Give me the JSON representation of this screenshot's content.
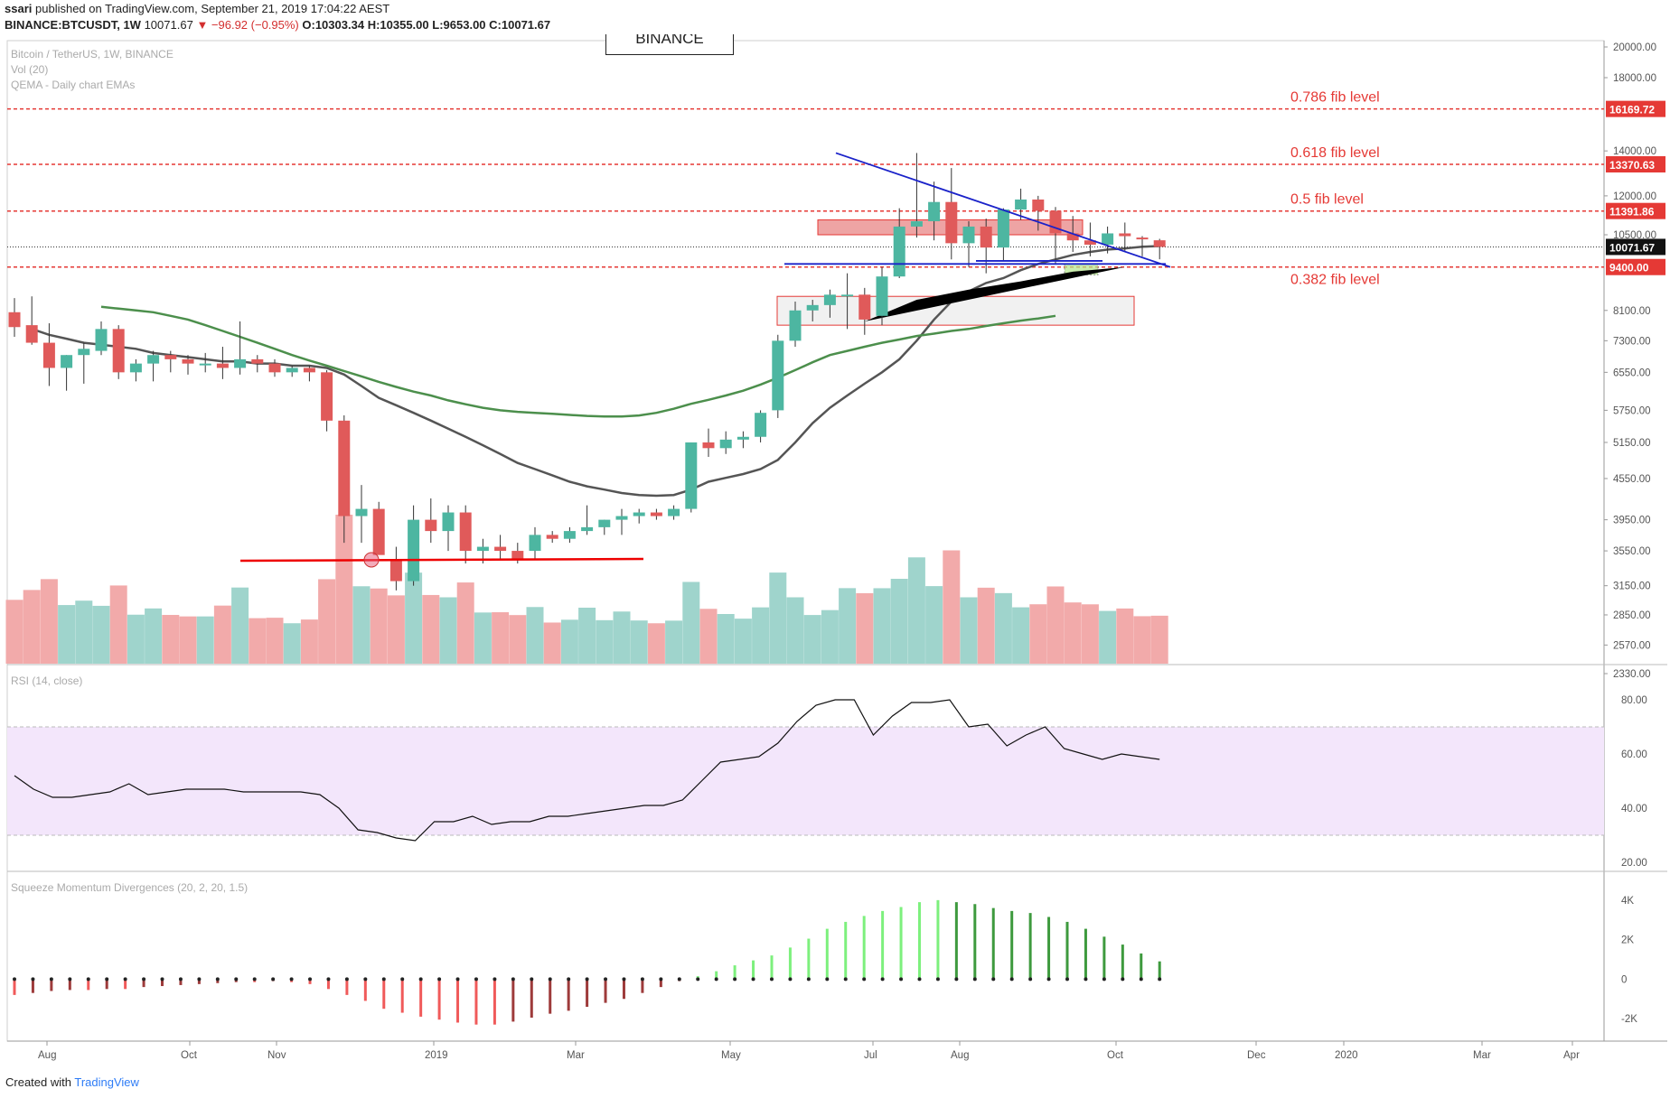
{
  "header": {
    "publisher": "ssari",
    "published_text": "published on TradingView.com, September 21, 2019 17:04:22 AEST",
    "symbol": "BINANCE:BTCUSDT, 1W",
    "last": "10071.67",
    "change": "▼ −96.92 (−0.95%)",
    "open": "O:10303.34",
    "high": "H:10355.00",
    "low": "L:9653.00",
    "close": "C:10071.67"
  },
  "legend": {
    "line1": "Bitcoin / TetherUS, 1W, BINANCE",
    "line2": "Vol (20)",
    "line3": "QEMA - Daily chart EMAs",
    "watermark_box": "BINANCE"
  },
  "footer": {
    "created_with": "Created with",
    "brand": "TradingView"
  },
  "colors": {
    "up": "#4db6a1",
    "down": "#e05a5a",
    "vol_up": "#9fd4cc",
    "vol_down": "#f2aaaa",
    "fib": "#e53935",
    "trend": "#1a22c9",
    "ema_dark": "#555555",
    "ema_green": "#4c8f4c",
    "rsi_band": "#f3e6fb",
    "mom_up_light": "#7df07d",
    "mom_up_dark": "#3e9a3e",
    "mom_down_light": "#f05a5a",
    "mom_down_dark": "#9e3b3b"
  },
  "chart_data": {
    "type": "candlestick",
    "title": "Bitcoin / TetherUS, 1W, BINANCE",
    "price_axis_ticks": [
      "20000.00",
      "18000.00",
      "14000.00",
      "12000.00",
      "10500.00",
      "8100.00",
      "7300.00",
      "6550.00",
      "5750.00",
      "5150.00",
      "4550.00",
      "3950.00",
      "3550.00",
      "3150.00",
      "2850.00",
      "2570.00",
      "2330.00"
    ],
    "price_tags": [
      {
        "label": "16169.72",
        "color": "#e53935"
      },
      {
        "label": "13370.63",
        "color": "#e53935"
      },
      {
        "label": "11391.86",
        "color": "#e53935"
      },
      {
        "label": "10071.67",
        "color": "#111111"
      },
      {
        "label": "9400.00",
        "color": "#e53935"
      }
    ],
    "fib_levels": [
      {
        "label": "0.786 fib level",
        "value": 16169.72
      },
      {
        "label": "0.618 fib level",
        "value": 13370.63
      },
      {
        "label": "0.5 fib level",
        "value": 11391.86
      },
      {
        "label": "0.382 fib level",
        "value": 9400.0
      }
    ],
    "x_axis_labels": [
      "Aug",
      "Oct",
      "Nov",
      "2019",
      "Mar",
      "May",
      "Jul",
      "Aug",
      "Oct",
      "Dec",
      "2020",
      "Mar",
      "Apr"
    ],
    "candles": [
      [
        8050,
        8450,
        7400,
        7650
      ],
      [
        7700,
        8500,
        7200,
        7250
      ],
      [
        7250,
        7750,
        6250,
        6650
      ],
      [
        6650,
        6950,
        6150,
        6950
      ],
      [
        6950,
        7250,
        6300,
        7100
      ],
      [
        7050,
        7800,
        6950,
        7600
      ],
      [
        7600,
        7700,
        6400,
        6550
      ],
      [
        6550,
        6850,
        6350,
        6750
      ],
      [
        6750,
        7050,
        6350,
        6950
      ],
      [
        6950,
        7050,
        6550,
        6850
      ],
      [
        6850,
        6950,
        6500,
        6750
      ],
      [
        6750,
        7000,
        6550,
        6750
      ],
      [
        6750,
        7150,
        6400,
        6650
      ],
      [
        6650,
        7800,
        6500,
        6850
      ],
      [
        6850,
        6950,
        6550,
        6750
      ],
      [
        6750,
        6850,
        6450,
        6550
      ],
      [
        6550,
        6700,
        6450,
        6650
      ],
      [
        6650,
        6700,
        6350,
        6550
      ],
      [
        6550,
        6600,
        5350,
        5550
      ],
      [
        5550,
        5650,
        3650,
        4000
      ],
      [
        4000,
        4450,
        3650,
        4100
      ],
      [
        4100,
        4200,
        3550,
        3500
      ],
      [
        3450,
        3600,
        3100,
        3200
      ],
      [
        3200,
        4150,
        3150,
        3950
      ],
      [
        3950,
        4250,
        3650,
        3800
      ],
      [
        3800,
        4150,
        3550,
        4050
      ],
      [
        4050,
        4150,
        3400,
        3550
      ],
      [
        3550,
        3700,
        3400,
        3600
      ],
      [
        3600,
        3750,
        3450,
        3550
      ],
      [
        3550,
        3650,
        3400,
        3450
      ],
      [
        3550,
        3850,
        3450,
        3750
      ],
      [
        3750,
        3800,
        3650,
        3700
      ],
      [
        3700,
        3850,
        3650,
        3800
      ],
      [
        3800,
        4150,
        3750,
        3850
      ],
      [
        3850,
        3950,
        3750,
        3950
      ],
      [
        3950,
        4100,
        3750,
        4000
      ],
      [
        4000,
        4100,
        3900,
        4050
      ],
      [
        4050,
        4100,
        3950,
        4000
      ],
      [
        4000,
        4150,
        3950,
        4100
      ],
      [
        4100,
        5150,
        4050,
        5150
      ],
      [
        5150,
        5400,
        4900,
        5050
      ],
      [
        5050,
        5350,
        4950,
        5200
      ],
      [
        5200,
        5350,
        5050,
        5250
      ],
      [
        5250,
        5750,
        5150,
        5700
      ],
      [
        5750,
        7450,
        5600,
        7300
      ],
      [
        7300,
        8350,
        7150,
        8100
      ],
      [
        8100,
        8400,
        7800,
        8250
      ],
      [
        8250,
        8700,
        7900,
        8550
      ],
      [
        8550,
        9200,
        7600,
        8550
      ],
      [
        8550,
        8750,
        7450,
        7850
      ],
      [
        7950,
        9400,
        7700,
        9100
      ],
      [
        9100,
        11500,
        9050,
        10800
      ],
      [
        10800,
        13900,
        10400,
        11000
      ],
      [
        11000,
        12600,
        10300,
        11750
      ],
      [
        11750,
        13200,
        9650,
        10200
      ],
      [
        10200,
        11000,
        9400,
        10800
      ],
      [
        10800,
        11100,
        9200,
        10050
      ],
      [
        10050,
        11500,
        9600,
        11450
      ],
      [
        11450,
        12300,
        11050,
        11850
      ],
      [
        11850,
        12000,
        10650,
        11400
      ],
      [
        11400,
        11550,
        9500,
        10550
      ],
      [
        10550,
        11200,
        9900,
        10300
      ],
      [
        10300,
        10950,
        9750,
        10150
      ],
      [
        10150,
        10800,
        9850,
        10550
      ],
      [
        10550,
        10950,
        9900,
        10450
      ],
      [
        10400,
        10450,
        9750,
        10350
      ],
      [
        10303.34,
        10355,
        9653,
        10071.67
      ]
    ],
    "volume_up_down": "per candle direction",
    "ema_labels": [
      "QEMA - Daily chart EMAs"
    ],
    "rsi": {
      "label": "RSI (14, close)",
      "ticks": [
        "80.00",
        "60.00",
        "40.00",
        "20.00"
      ],
      "band": [
        30,
        70
      ],
      "values": [
        52,
        47,
        44,
        44,
        45,
        46,
        49,
        45,
        46,
        47,
        47,
        47,
        46,
        46,
        46,
        46,
        45,
        40,
        32,
        31,
        29,
        28,
        35,
        35,
        37,
        34,
        35,
        35,
        37,
        37,
        38,
        39,
        40,
        41,
        41,
        43,
        50,
        57,
        58,
        59,
        64,
        72,
        78,
        80,
        80,
        67,
        74,
        79,
        79,
        80,
        70,
        71,
        63,
        67,
        70,
        62,
        60,
        58,
        60,
        59,
        58
      ],
      "ylim": [
        20,
        90
      ]
    },
    "momentum": {
      "label": "Squeeze Momentum Divergences (20, 2, 20, 1.5)",
      "ticks": [
        "4K",
        "2K",
        "0",
        "-2K"
      ],
      "ylim": [
        -3000,
        5000
      ],
      "values": [
        -800,
        -700,
        -600,
        -550,
        -550,
        -500,
        -500,
        -400,
        -350,
        -300,
        -250,
        -200,
        -150,
        -150,
        -100,
        -150,
        -250,
        -500,
        -800,
        -1100,
        -1500,
        -1700,
        -1900,
        -2050,
        -2200,
        -2300,
        -2300,
        -2150,
        -1950,
        -1750,
        -1600,
        -1400,
        -1200,
        -1000,
        -700,
        -400,
        -100,
        150,
        400,
        700,
        950,
        1200,
        1600,
        2050,
        2550,
        2900,
        3200,
        3450,
        3650,
        3900,
        4000,
        3900,
        3800,
        3600,
        3450,
        3350,
        3150,
        2900,
        2550,
        2150,
        1750,
        1300,
        900
      ],
      "dots_color": "#222222"
    }
  }
}
